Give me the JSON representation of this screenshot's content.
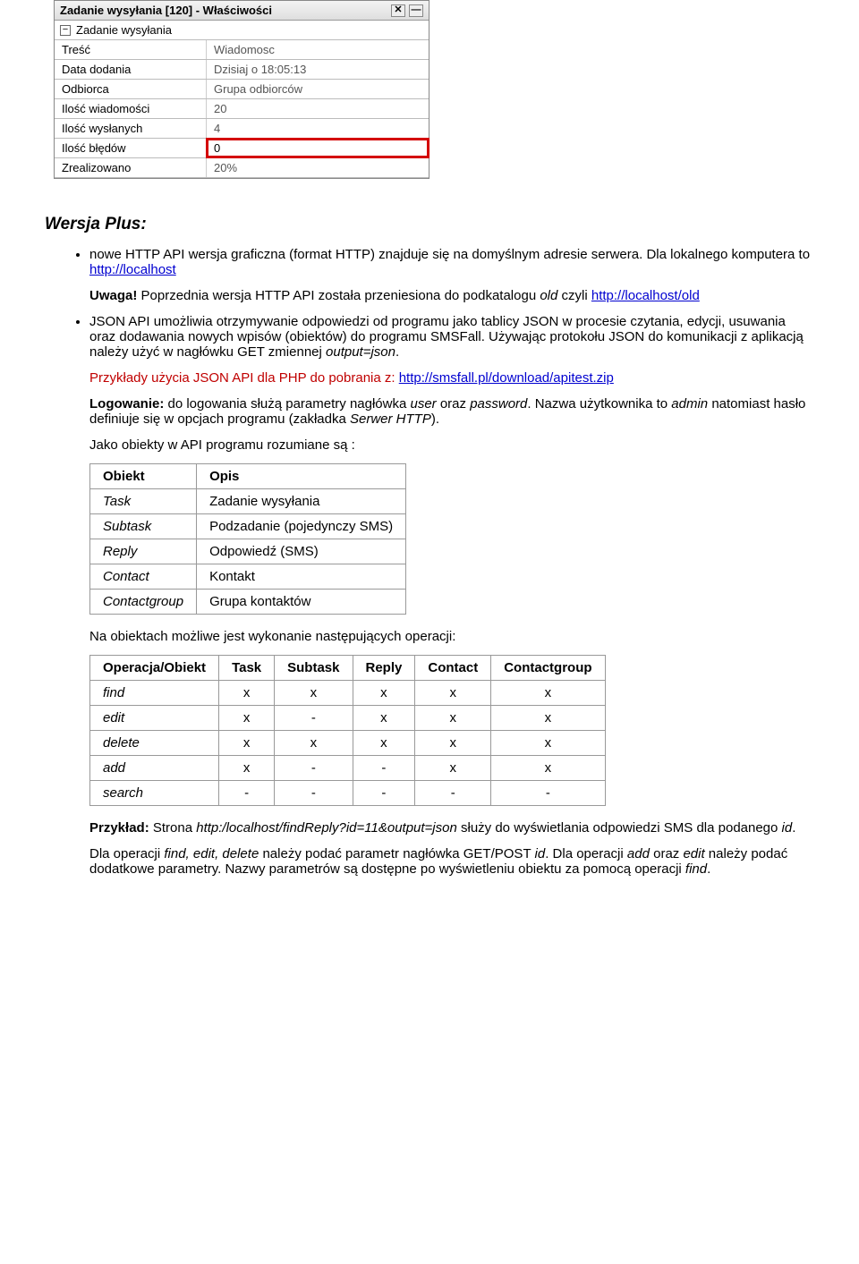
{
  "panel": {
    "title": "Zadanie wysyłania [120] - Właściwości",
    "close_glyph": "✕",
    "min_glyph": "—",
    "section_label": "Zadanie wysyłania",
    "toggle_glyph": "−",
    "rows": [
      {
        "k": "Treść",
        "v": "Wiadomosc"
      },
      {
        "k": "Data dodania",
        "v": "Dzisiaj o 18:05:13"
      },
      {
        "k": "Odbiorca",
        "v": "Grupa odbiorców"
      },
      {
        "k": "Ilość wiadomości",
        "v": "20"
      },
      {
        "k": "Ilość wysłanych",
        "v": "4"
      },
      {
        "k": "Ilość błędów",
        "v": "0",
        "highlight": true
      },
      {
        "k": "Zrealizowano",
        "v": "20%"
      }
    ]
  },
  "heading": "Wersja Plus:",
  "bullet1_pre": "nowe HTTP API wersja graficzna (format HTTP) znajduje się na domyślnym adresie serwera. Dla lokalnego komputera to ",
  "bullet1_link": "http://localhost",
  "uwaga_label": "Uwaga!",
  "uwaga_text_pre": " Poprzednia wersja HTTP API została przeniesiona do podkatalogu ",
  "uwaga_old": "old",
  "uwaga_text_mid": " czyli ",
  "uwaga_link": "http://localhost/old",
  "bullet2_a": "JSON API umożliwia otrzymywanie odpowiedzi od programu jako tablicy JSON w procesie czytania, edycji, usuwania oraz dodawania nowych wpisów (obiektów) do programu SMSFall. Używając protokołu JSON do komunikacji z aplikacją należy użyć w nagłówku GET zmiennej ",
  "bullet2_var": "output=json",
  "bullet2_b": ".",
  "examples_pre": "Przykłady użycia JSON API dla PHP do pobrania z: ",
  "examples_link": "http://smsfall.pl/download/apitest.zip",
  "login_label": "Logowanie:",
  "login_text_a": " do logowania służą parametry nagłówka ",
  "login_user": "user",
  "login_text_b": " oraz ",
  "login_pass": "password",
  "login_text_c": ". Nazwa użytkownika to ",
  "login_admin": "admin",
  "login_text_d": " natomiast hasło definiuje się w opcjach programu (zakładka ",
  "login_tab": "Serwer HTTP",
  "login_text_e": ").",
  "objects_intro": "Jako obiekty w API programu rozumiane są :",
  "objects_table": {
    "head": [
      "Obiekt",
      "Opis"
    ],
    "rows": [
      [
        "Task",
        "Zadanie wysyłania"
      ],
      [
        "Subtask",
        "Podzadanie (pojedynczy SMS)"
      ],
      [
        "Reply",
        "Odpowiedź (SMS)"
      ],
      [
        "Contact",
        "Kontakt"
      ],
      [
        "Contactgroup",
        "Grupa kontaktów"
      ]
    ]
  },
  "ops_intro": "Na obiektach możliwe jest wykonanie następujących operacji:",
  "ops_table": {
    "head": [
      "Operacja/Obiekt",
      "Task",
      "Subtask",
      "Reply",
      "Contact",
      "Contactgroup"
    ],
    "rows": [
      [
        "find",
        "x",
        "x",
        "x",
        "x",
        "x"
      ],
      [
        "edit",
        "x",
        "-",
        "x",
        "x",
        "x"
      ],
      [
        "delete",
        "x",
        "x",
        "x",
        "x",
        "x"
      ],
      [
        "add",
        "x",
        "-",
        "-",
        "x",
        "x"
      ],
      [
        "search",
        "-",
        "-",
        "-",
        "-",
        "-"
      ]
    ]
  },
  "example_label": "Przykład:",
  "example_a": " Strona ",
  "example_url": "http:/localhost/findReply?id=11&output=json",
  "example_b": " służy do wyświetlania odpowiedzi SMS dla podanego ",
  "example_id": "id",
  "example_c": ".",
  "final_a": "Dla operacji ",
  "final_ops1": "find, edit, delete",
  "final_b": " należy podać parametr nagłówka GET/POST ",
  "final_id": "id",
  "final_c": ". Dla operacji ",
  "final_ops2": "add",
  "final_d": " oraz ",
  "final_ops3": "edit",
  "final_e": " należy podać dodatkowe parametry. Nazwy parametrów są dostępne po wyświetleniu obiektu za pomocą operacji ",
  "final_ops4": "find",
  "final_f": "."
}
